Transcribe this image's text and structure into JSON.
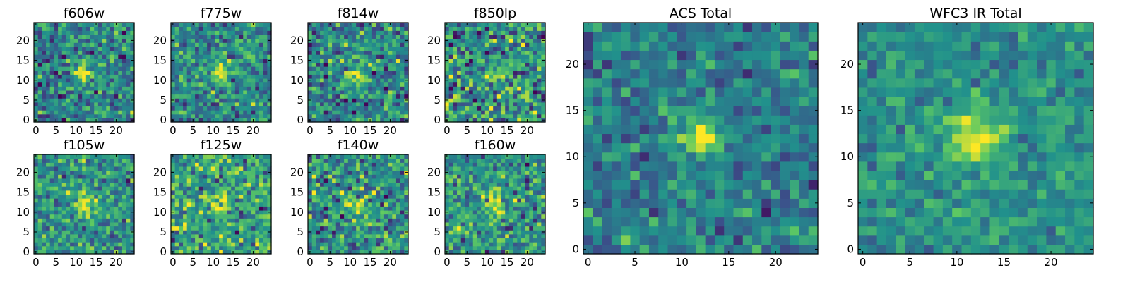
{
  "figure": {
    "description_colors": {
      "colormap": [
        "#440154",
        "#3b528b",
        "#21918c",
        "#5ec962",
        "#fde725"
      ],
      "frame": "#000000",
      "background": "#ffffff"
    }
  },
  "chart_data": [
    {
      "type": "heatmap",
      "title": "f606w",
      "xticks": [
        0,
        5,
        10,
        15,
        20
      ],
      "yticks": [
        0,
        5,
        10,
        15,
        20
      ],
      "xlim": [
        -0.5,
        24.5
      ],
      "ylim": [
        -0.5,
        24.5
      ],
      "grid": false,
      "source": {
        "center": [
          12,
          12
        ],
        "peak": 0.55,
        "sigma": 1.6,
        "noise": 0.17,
        "base": 0.45
      }
    },
    {
      "type": "heatmap",
      "title": "f775w",
      "xticks": [
        0,
        5,
        10,
        15,
        20
      ],
      "yticks": [
        0,
        5,
        10,
        15,
        20
      ],
      "xlim": [
        -0.5,
        24.5
      ],
      "ylim": [
        -0.5,
        24.5
      ],
      "grid": false,
      "source": {
        "center": [
          12,
          12
        ],
        "peak": 0.5,
        "sigma": 1.6,
        "noise": 0.17,
        "base": 0.47
      }
    },
    {
      "type": "heatmap",
      "title": "f814w",
      "xticks": [
        0,
        5,
        10,
        15,
        20
      ],
      "yticks": [
        0,
        5,
        10,
        15,
        20
      ],
      "xlim": [
        -0.5,
        24.5
      ],
      "ylim": [
        -0.5,
        24.5
      ],
      "grid": false,
      "source": {
        "center": [
          12,
          11
        ],
        "peak": 0.5,
        "sigma": 1.5,
        "noise": 0.17,
        "base": 0.45
      }
    },
    {
      "type": "heatmap",
      "title": "f850lp",
      "xticks": [
        0,
        5,
        10,
        15,
        20
      ],
      "yticks": [
        0,
        5,
        10,
        15,
        20
      ],
      "xlim": [
        -0.5,
        24.5
      ],
      "ylim": [
        -0.5,
        24.5
      ],
      "grid": false,
      "source": {
        "center": [
          13,
          12
        ],
        "peak": 0.35,
        "sigma": 1.6,
        "noise": 0.22,
        "base": 0.5
      }
    },
    {
      "type": "heatmap",
      "title": "f105w",
      "xticks": [
        0,
        5,
        10,
        15,
        20
      ],
      "yticks": [
        0,
        5,
        10,
        15,
        20
      ],
      "xlim": [
        -0.5,
        24.5
      ],
      "ylim": [
        -0.5,
        24.5
      ],
      "grid": false,
      "source": {
        "center": [
          13,
          12
        ],
        "peak": 0.45,
        "sigma": 1.8,
        "noise": 0.16,
        "base": 0.5
      }
    },
    {
      "type": "heatmap",
      "title": "f125w",
      "xticks": [
        0,
        5,
        10,
        15,
        20
      ],
      "yticks": [
        0,
        5,
        10,
        15,
        20
      ],
      "xlim": [
        -0.5,
        24.5
      ],
      "ylim": [
        -0.5,
        24.5
      ],
      "grid": false,
      "source": {
        "center": [
          12,
          12
        ],
        "peak": 0.4,
        "sigma": 2.0,
        "noise": 0.18,
        "base": 0.58
      }
    },
    {
      "type": "heatmap",
      "title": "f140w",
      "xticks": [
        0,
        5,
        10,
        15,
        20
      ],
      "yticks": [
        0,
        5,
        10,
        15,
        20
      ],
      "xlim": [
        -0.5,
        24.5
      ],
      "ylim": [
        -0.5,
        24.5
      ],
      "grid": false,
      "source": {
        "center": [
          12,
          12
        ],
        "peak": 0.4,
        "sigma": 1.8,
        "noise": 0.18,
        "base": 0.5
      }
    },
    {
      "type": "heatmap",
      "title": "f160w",
      "xticks": [
        0,
        5,
        10,
        15,
        20
      ],
      "yticks": [
        0,
        5,
        10,
        15,
        20
      ],
      "xlim": [
        -0.5,
        24.5
      ],
      "ylim": [
        -0.5,
        24.5
      ],
      "grid": false,
      "source": {
        "center": [
          12,
          12
        ],
        "peak": 0.4,
        "sigma": 2.0,
        "noise": 0.17,
        "base": 0.52
      }
    },
    {
      "type": "heatmap",
      "title": "ACS Total",
      "xticks": [
        0,
        5,
        10,
        15,
        20
      ],
      "yticks": [
        0,
        5,
        10,
        15,
        20
      ],
      "xlim": [
        -0.5,
        24.5
      ],
      "ylim": [
        -0.5,
        24.5
      ],
      "grid": false,
      "source": {
        "center": [
          12,
          12
        ],
        "peak": 0.55,
        "sigma": 1.5,
        "noise": 0.12,
        "base": 0.42
      }
    },
    {
      "type": "heatmap",
      "title": "WFC3 IR Total",
      "xticks": [
        0,
        5,
        10,
        15,
        20
      ],
      "yticks": [
        0,
        5,
        10,
        15,
        20
      ],
      "xlim": [
        -0.5,
        24.5
      ],
      "ylim": [
        -0.5,
        24.5
      ],
      "grid": false,
      "source": {
        "center": [
          12,
          12
        ],
        "peak": 0.45,
        "sigma": 2.2,
        "noise": 0.1,
        "base": 0.5
      }
    }
  ]
}
